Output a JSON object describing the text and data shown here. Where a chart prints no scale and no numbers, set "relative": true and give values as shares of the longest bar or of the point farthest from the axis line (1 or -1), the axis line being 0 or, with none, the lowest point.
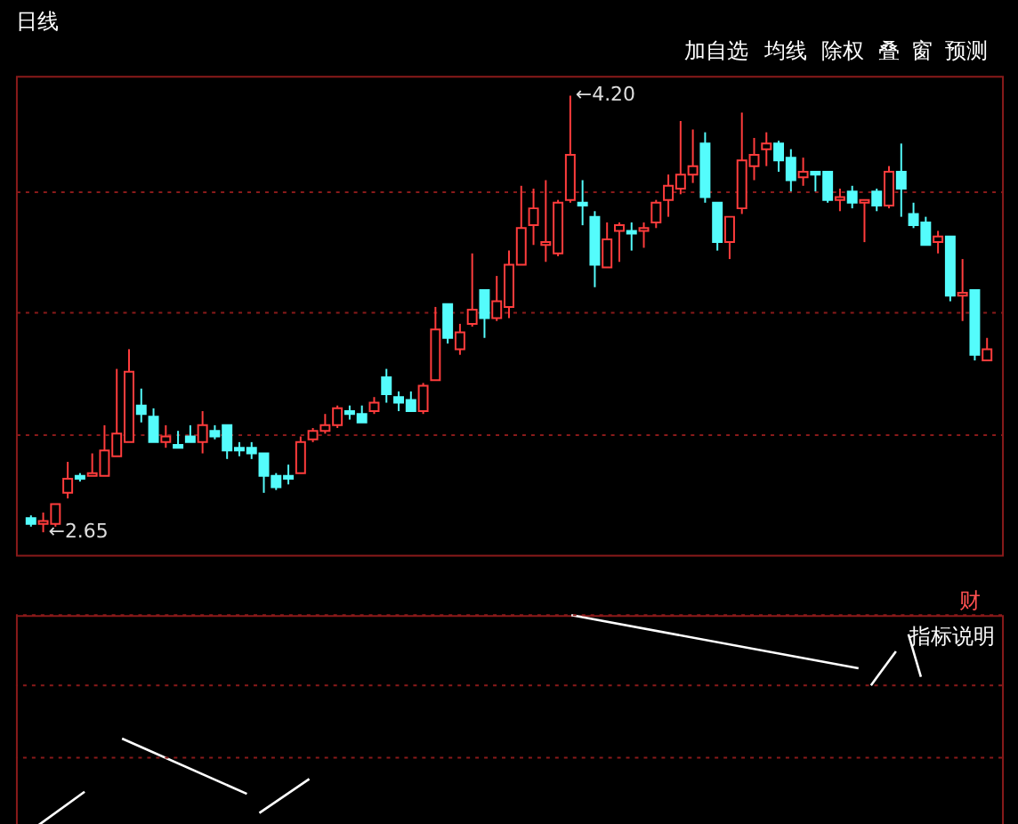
{
  "chart_data": [
    {
      "type": "candlestick",
      "title": "日线",
      "annotations": [
        "加自选",
        "均线",
        "除权",
        "叠",
        "窗",
        "预测",
        "←4.20",
        "←2.65"
      ],
      "categories": [
        null,
        null,
        null,
        null,
        null,
        null,
        null,
        null,
        null,
        null,
        null,
        null,
        null,
        null,
        null,
        null,
        null,
        null,
        null,
        null,
        null,
        null,
        null,
        null,
        null,
        null,
        null,
        null,
        null,
        null,
        null,
        null,
        null,
        null,
        null,
        null,
        null,
        null,
        null,
        null,
        null,
        null,
        null,
        null,
        null,
        null,
        null,
        null,
        null,
        null,
        null,
        null,
        null,
        null,
        null,
        null,
        null,
        null,
        null,
        null,
        null,
        null,
        null,
        null,
        null,
        null,
        null,
        null,
        null,
        null,
        null,
        null,
        null,
        null,
        null,
        null,
        null,
        null,
        null
      ],
      "ohlc": [
        [
          2.7,
          2.71,
          2.67,
          2.68
        ],
        [
          2.68,
          2.72,
          2.65,
          2.69
        ],
        [
          2.68,
          2.75,
          2.67,
          2.75
        ],
        [
          2.79,
          2.9,
          2.77,
          2.84
        ],
        [
          2.85,
          2.86,
          2.83,
          2.84
        ],
        [
          2.85,
          2.93,
          2.85,
          2.86
        ],
        [
          2.85,
          3.03,
          2.85,
          2.94
        ],
        [
          2.92,
          3.23,
          2.92,
          3.0
        ],
        [
          2.97,
          3.3,
          2.97,
          3.22
        ],
        [
          3.1,
          3.16,
          3.04,
          3.07
        ],
        [
          3.06,
          3.09,
          2.97,
          2.97
        ],
        [
          2.97,
          3.03,
          2.95,
          2.99
        ],
        [
          2.96,
          3.01,
          2.95,
          2.95
        ],
        [
          2.99,
          3.03,
          2.97,
          2.97
        ],
        [
          2.97,
          3.08,
          2.93,
          3.03
        ],
        [
          3.01,
          3.03,
          2.98,
          2.99
        ],
        [
          3.03,
          3.03,
          2.91,
          2.94
        ],
        [
          2.95,
          2.97,
          2.92,
          2.94
        ],
        [
          2.95,
          2.97,
          2.91,
          2.93
        ],
        [
          2.93,
          2.93,
          2.79,
          2.85
        ],
        [
          2.85,
          2.86,
          2.8,
          2.81
        ],
        [
          2.85,
          2.89,
          2.82,
          2.84
        ],
        [
          2.86,
          2.99,
          2.86,
          2.97
        ],
        [
          2.98,
          3.02,
          2.97,
          3.01
        ],
        [
          3.01,
          3.07,
          3.0,
          3.03
        ],
        [
          3.03,
          3.1,
          3.02,
          3.09
        ],
        [
          3.08,
          3.1,
          3.05,
          3.07
        ],
        [
          3.07,
          3.1,
          3.04,
          3.04
        ],
        [
          3.08,
          3.13,
          3.07,
          3.11
        ],
        [
          3.2,
          3.23,
          3.11,
          3.14
        ],
        [
          3.13,
          3.15,
          3.08,
          3.11
        ],
        [
          3.12,
          3.15,
          3.08,
          3.08
        ],
        [
          3.08,
          3.18,
          3.07,
          3.17
        ],
        [
          3.19,
          3.45,
          3.19,
          3.37
        ],
        [
          3.46,
          3.46,
          3.32,
          3.34
        ],
        [
          3.3,
          3.39,
          3.28,
          3.36
        ],
        [
          3.39,
          3.64,
          3.38,
          3.44
        ],
        [
          3.51,
          3.51,
          3.34,
          3.41
        ],
        [
          3.41,
          3.56,
          3.4,
          3.47
        ],
        [
          3.45,
          3.65,
          3.41,
          3.6
        ],
        [
          3.6,
          3.88,
          3.6,
          3.73
        ],
        [
          3.74,
          3.87,
          3.67,
          3.8
        ],
        [
          3.67,
          3.9,
          3.61,
          3.68
        ],
        [
          3.64,
          3.83,
          3.63,
          3.82
        ],
        [
          3.83,
          4.2,
          3.82,
          3.99
        ],
        [
          3.82,
          3.9,
          3.74,
          3.81
        ],
        [
          3.77,
          3.79,
          3.52,
          3.6
        ],
        [
          3.59,
          3.75,
          3.59,
          3.69
        ],
        [
          3.72,
          3.75,
          3.61,
          3.74
        ],
        [
          3.72,
          3.75,
          3.65,
          3.71
        ],
        [
          3.72,
          3.75,
          3.66,
          3.73
        ],
        [
          3.75,
          3.83,
          3.73,
          3.82
        ],
        [
          3.83,
          3.92,
          3.77,
          3.88
        ],
        [
          3.87,
          4.11,
          3.85,
          3.92
        ],
        [
          3.92,
          4.08,
          3.89,
          3.95
        ],
        [
          4.03,
          4.07,
          3.82,
          3.84
        ],
        [
          3.82,
          3.82,
          3.65,
          3.68
        ],
        [
          3.68,
          3.77,
          3.62,
          3.77
        ],
        [
          3.8,
          4.14,
          3.78,
          3.97
        ],
        [
          3.95,
          4.05,
          3.9,
          3.99
        ],
        [
          4.01,
          4.07,
          3.95,
          4.03
        ],
        [
          4.03,
          4.04,
          3.93,
          3.97
        ],
        [
          3.98,
          4.01,
          3.86,
          3.9
        ],
        [
          3.91,
          3.98,
          3.88,
          3.93
        ],
        [
          3.93,
          3.93,
          3.86,
          3.92
        ],
        [
          3.93,
          3.93,
          3.82,
          3.83
        ],
        [
          3.83,
          3.87,
          3.79,
          3.84
        ],
        [
          3.86,
          3.88,
          3.8,
          3.82
        ],
        [
          3.82,
          3.83,
          3.68,
          3.83
        ],
        [
          3.86,
          3.87,
          3.79,
          3.81
        ],
        [
          3.81,
          3.95,
          3.8,
          3.93
        ],
        [
          3.93,
          4.03,
          3.77,
          3.87
        ],
        [
          3.78,
          3.82,
          3.73,
          3.74
        ],
        [
          3.75,
          3.77,
          3.67,
          3.67
        ],
        [
          3.68,
          3.72,
          3.64,
          3.7
        ],
        [
          3.7,
          3.7,
          3.47,
          3.49
        ],
        [
          3.49,
          3.62,
          3.4,
          3.5
        ],
        [
          3.51,
          3.51,
          3.26,
          3.28
        ],
        [
          3.26,
          3.34,
          3.26,
          3.3
        ]
      ],
      "ylim": [
        2.57,
        4.27
      ],
      "yticks": [
        {
          "value": 3.0,
          "label": null
        },
        {
          "value": 3.43,
          "label": null
        },
        {
          "value": 3.86,
          "label": null
        }
      ],
      "grid": "y",
      "tick_labels": false
    },
    {
      "type": "line",
      "relative": true,
      "tick_labels": false,
      "ref_lines": [
        {
          "axis": "y",
          "value": 0.33,
          "color": "#8a1a1a",
          "line_style": "dotted"
        },
        {
          "axis": "y",
          "value": 0.67,
          "color": "#8a1a1a",
          "line_style": "dotted"
        },
        {
          "axis": "y",
          "value": 1,
          "color": "#8a1a1a",
          "line_style": "dotted"
        }
      ],
      "annotations": [
        "财",
        "指标说明"
      ],
      "categories": [
        null,
        null,
        null,
        null,
        null,
        null,
        null,
        null,
        null,
        null,
        null,
        null,
        null,
        null,
        null,
        null,
        null,
        null,
        null,
        null,
        null,
        null,
        null,
        null,
        null,
        null,
        null,
        null,
        null,
        null,
        null,
        null,
        null,
        null,
        null,
        null,
        null,
        null,
        null,
        null,
        null,
        null,
        null,
        null,
        null,
        null,
        null,
        null,
        null,
        null,
        null,
        null,
        null,
        null,
        null,
        null,
        null,
        null,
        null,
        null,
        null,
        null,
        null,
        null,
        null,
        null,
        null,
        null,
        null,
        null,
        null,
        null,
        null,
        null,
        null,
        null,
        null,
        null,
        null
      ],
      "series": [
        {
          "color": "#ffffff",
          "values": [
            null,
            0,
            null,
            null,
            null,
            0.17,
            null,
            null,
            null,
            null,
            null,
            null,
            null,
            null,
            null,
            null,
            null,
            null,
            null,
            null,
            null,
            null,
            null,
            null,
            null,
            null,
            null,
            null,
            null,
            null,
            null,
            null,
            null,
            null,
            null,
            null,
            null,
            null,
            null,
            null,
            null,
            null,
            null,
            null,
            null,
            null,
            null,
            null,
            null,
            null,
            null,
            null,
            null,
            null,
            null,
            null,
            null,
            null,
            null,
            null,
            null,
            null,
            null,
            null,
            null,
            null,
            null,
            null,
            null,
            null,
            null,
            null,
            null,
            null,
            null,
            null,
            null,
            null,
            null
          ]
        },
        {
          "color": "#ffffff",
          "values": [
            null,
            null,
            null,
            null,
            null,
            null,
            null,
            null,
            0.42,
            null,
            null,
            null,
            null,
            null,
            null,
            null,
            null,
            null,
            0.16,
            null,
            null,
            null,
            null,
            null,
            null,
            null,
            null,
            null,
            null,
            null,
            null,
            null,
            null,
            null,
            null,
            null,
            null,
            null,
            null,
            null,
            null,
            null,
            null,
            null,
            null,
            null,
            null,
            null,
            null,
            null,
            null,
            null,
            null,
            null,
            null,
            null,
            null,
            null,
            null,
            null,
            null,
            null,
            null,
            null,
            null,
            null,
            null,
            null,
            null,
            null,
            null,
            null,
            null,
            null,
            null,
            null,
            null,
            null,
            null
          ]
        },
        {
          "color": "#ffffff",
          "values": [
            null,
            null,
            null,
            null,
            null,
            null,
            null,
            null,
            null,
            null,
            null,
            null,
            null,
            null,
            null,
            null,
            null,
            null,
            null,
            0.07,
            null,
            null,
            null,
            0.23,
            null,
            null,
            null,
            null,
            null,
            null,
            null,
            null,
            null,
            null,
            null,
            null,
            null,
            null,
            null,
            null,
            null,
            null,
            null,
            null,
            null,
            null,
            null,
            null,
            null,
            null,
            null,
            null,
            null,
            null,
            null,
            null,
            null,
            null,
            null,
            null,
            null,
            null,
            null,
            null,
            null,
            null,
            null,
            null,
            null,
            null,
            null,
            null,
            null,
            null,
            null,
            null,
            null,
            null,
            null
          ]
        },
        {
          "color": "#ffffff",
          "values": [
            null,
            null,
            null,
            null,
            null,
            null,
            null,
            null,
            null,
            null,
            null,
            null,
            null,
            null,
            null,
            null,
            null,
            null,
            null,
            null,
            null,
            null,
            null,
            null,
            null,
            null,
            null,
            null,
            null,
            null,
            null,
            null,
            null,
            null,
            null,
            null,
            null,
            null,
            null,
            null,
            null,
            null,
            null,
            null,
            1,
            null,
            null,
            null,
            null,
            null,
            null,
            null,
            null,
            null,
            null,
            null,
            null,
            null,
            null,
            null,
            null,
            null,
            null,
            null,
            null,
            null,
            null,
            0.75,
            null,
            null,
            null,
            null,
            null,
            null,
            null,
            null,
            null,
            null,
            null
          ]
        },
        {
          "color": "#ffffff",
          "values": [
            null,
            null,
            null,
            null,
            null,
            null,
            null,
            null,
            null,
            null,
            null,
            null,
            null,
            null,
            null,
            null,
            null,
            null,
            null,
            null,
            null,
            null,
            null,
            null,
            null,
            null,
            null,
            null,
            null,
            null,
            null,
            null,
            null,
            null,
            null,
            null,
            null,
            null,
            null,
            null,
            null,
            null,
            null,
            null,
            null,
            null,
            null,
            null,
            null,
            null,
            null,
            null,
            null,
            null,
            null,
            null,
            null,
            null,
            null,
            null,
            null,
            null,
            null,
            null,
            null,
            null,
            null,
            null,
            0.67,
            null,
            0.83,
            null,
            null,
            null,
            null,
            null,
            null,
            null,
            null
          ]
        },
        {
          "color": "#ffffff",
          "values": [
            null,
            null,
            null,
            null,
            null,
            null,
            null,
            null,
            null,
            null,
            null,
            null,
            null,
            null,
            null,
            null,
            null,
            null,
            null,
            null,
            null,
            null,
            null,
            null,
            null,
            null,
            null,
            null,
            null,
            null,
            null,
            null,
            null,
            null,
            null,
            null,
            null,
            null,
            null,
            null,
            null,
            null,
            null,
            null,
            null,
            null,
            null,
            null,
            null,
            null,
            null,
            null,
            null,
            null,
            null,
            null,
            null,
            null,
            null,
            null,
            null,
            null,
            null,
            null,
            null,
            null,
            null,
            null,
            null,
            null,
            null,
            0.91,
            0.71,
            null,
            null,
            null,
            null,
            null,
            null
          ]
        }
      ]
    }
  ]
}
